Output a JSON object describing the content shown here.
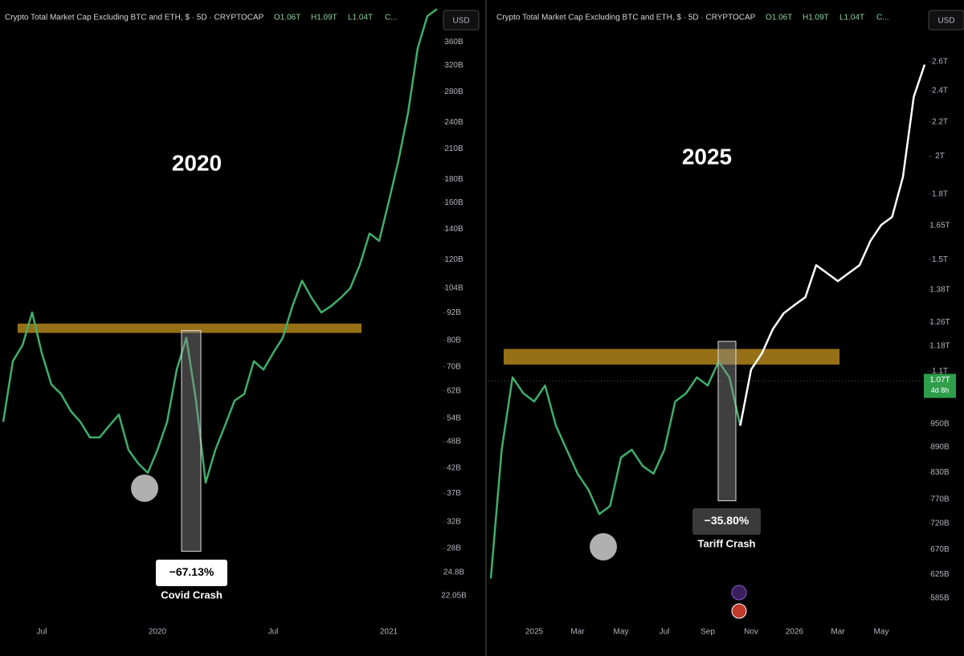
{
  "chart_data": [
    {
      "type": "line",
      "title": "Crypto Total Market Cap Excluding BTC and ETH, $ · 5D · CRYPTOCAP",
      "ohlc_labels": [
        "O1.06T",
        "H1.09T",
        "L1.04T",
        "C..."
      ],
      "currency": "USD",
      "log_scale": true,
      "categories": [
        null,
        null,
        null,
        null,
        "Jul",
        null,
        null,
        null,
        null,
        null,
        null,
        null,
        null,
        null,
        null,
        null,
        "2020",
        null,
        null,
        null,
        null,
        null,
        null,
        null,
        null,
        null,
        null,
        null,
        "Jul",
        null,
        null,
        null,
        null,
        null,
        null,
        null,
        null,
        null,
        null,
        null,
        "2021",
        null,
        null,
        null,
        null,
        null
      ],
      "series": [
        {
          "color": "#3fae6a",
          "values": [
            53,
            72,
            78,
            92,
            75,
            64,
            61,
            56,
            53,
            49,
            49,
            52,
            55,
            46,
            43,
            41,
            46,
            53,
            69,
            81,
            59,
            39,
            46,
            52,
            59,
            61,
            72,
            69,
            75,
            81,
            95,
            108,
            99,
            92,
            95,
            99,
            104,
            117,
            137,
            132,
            161,
            198,
            252,
            349,
            410,
            425
          ]
        }
      ],
      "ylim": [
        19.3,
        427
      ],
      "yticks": [
        {
          "value": 360,
          "label": "360B"
        },
        {
          "value": 320,
          "label": "320B"
        },
        {
          "value": 280,
          "label": "280B"
        },
        {
          "value": 240,
          "label": "240B"
        },
        {
          "value": 210,
          "label": "210B"
        },
        {
          "value": 180,
          "label": "180B"
        },
        {
          "value": 160,
          "label": "160B"
        },
        {
          "value": 140,
          "label": "140B"
        },
        {
          "value": 120,
          "label": "120B"
        },
        {
          "value": 104,
          "label": "104B"
        },
        {
          "value": 92,
          "label": "92B"
        },
        {
          "value": 80,
          "label": "80B"
        },
        {
          "value": 70,
          "label": "70B"
        },
        {
          "value": 62,
          "label": "62B"
        },
        {
          "value": 54,
          "label": "54B"
        },
        {
          "value": 48,
          "label": "48B"
        },
        {
          "value": 42,
          "label": "42B"
        },
        {
          "value": 37,
          "label": "37B"
        },
        {
          "value": 32,
          "label": "32B"
        },
        {
          "value": 28,
          "label": "28B"
        },
        {
          "value": 24.8,
          "label": "24.8B"
        },
        {
          "value": 22.05,
          "label": "22.05B"
        }
      ],
      "resistance_band": [
        83,
        87
      ],
      "drop_range": [
        84,
        27.6
      ],
      "year_label": "2020",
      "drop_label": "−67.13%",
      "crash_label": "Covid Crash"
    },
    {
      "type": "line",
      "title": "Crypto Total Market Cap Excluding BTC and ETH, $ · 5D · CRYPTOCAP",
      "ohlc_labels": [
        "O1.06T",
        "H1.09T",
        "L1.04T",
        "C..."
      ],
      "currency": "USD",
      "log_scale": true,
      "categories": [
        null,
        null,
        null,
        null,
        "2025",
        null,
        null,
        null,
        "Mar",
        null,
        null,
        null,
        "May",
        null,
        null,
        null,
        "Jul",
        null,
        null,
        null,
        "Sep",
        null,
        null,
        null,
        "Nov",
        null,
        null,
        null,
        "2026",
        null,
        null,
        null,
        "Mar",
        null,
        null,
        null,
        "May",
        null,
        null,
        null,
        null
      ],
      "series": [
        {
          "color": "#3fae6a",
          "values": [
            618,
            884,
            1081,
            1034,
            1011,
            1057,
            945,
            884,
            827,
            791,
            739,
            756,
            865,
            884,
            845,
            827,
            884,
            1011,
            1034,
            1081,
            1057,
            1130,
            1081,
            945,
            null,
            null,
            null,
            null,
            null,
            null,
            null,
            null,
            null,
            null,
            null,
            null,
            null,
            null,
            null,
            null,
            null
          ]
        },
        {
          "color": "#ffffff",
          "values": [
            null,
            null,
            null,
            null,
            null,
            null,
            null,
            null,
            null,
            null,
            null,
            null,
            null,
            null,
            null,
            null,
            null,
            null,
            null,
            null,
            null,
            null,
            null,
            945,
            1105,
            1156,
            1236,
            1292,
            1322,
            1351,
            1477,
            1445,
            1413,
            1445,
            1477,
            1580,
            1652,
            1689,
            1888,
            2360,
            2580
          ]
        }
      ],
      "ylim": [
        529,
        3020
      ],
      "yticks": [
        {
          "value": 2600,
          "label": "2.6T"
        },
        {
          "value": 2400,
          "label": "2.4T"
        },
        {
          "value": 2200,
          "label": "2.2T"
        },
        {
          "value": 2000,
          "label": "2T"
        },
        {
          "value": 1800,
          "label": "1.8T"
        },
        {
          "value": 1650,
          "label": "1.65T"
        },
        {
          "value": 1500,
          "label": "1.5T"
        },
        {
          "value": 1380,
          "label": "1.38T"
        },
        {
          "value": 1260,
          "label": "1.26T"
        },
        {
          "value": 1180,
          "label": "1.18T"
        },
        {
          "value": 1100,
          "label": "1.1T"
        },
        {
          "value": 950,
          "label": "950B"
        },
        {
          "value": 890,
          "label": "890B"
        },
        {
          "value": 830,
          "label": "830B"
        },
        {
          "value": 770,
          "label": "770B"
        },
        {
          "value": 720,
          "label": "720B"
        },
        {
          "value": 670,
          "label": "670B"
        },
        {
          "value": 625,
          "label": "625B"
        },
        {
          "value": 585,
          "label": "585B"
        }
      ],
      "last_price": {
        "value": 1070,
        "label": "1.07T"
      },
      "countdown": "4d 8h",
      "resistance_band": [
        1120,
        1170
      ],
      "drop_range": [
        1195,
        767
      ],
      "year_label": "2025",
      "drop_label": "−35.80%",
      "crash_label": "Tariff Crash"
    }
  ]
}
